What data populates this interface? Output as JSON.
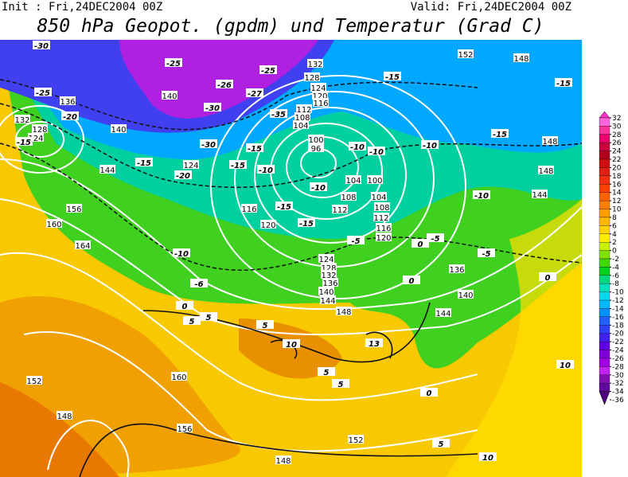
{
  "header": {
    "init": "Init : Fri,24DEC2004 00Z",
    "valid": "Valid: Fri,24DEC2004 00Z",
    "title": "850 hPa Geopot. (gpdm) und Temperatur (Grad C)"
  },
  "colorbar": {
    "ticks": [
      32,
      30,
      28,
      26,
      24,
      22,
      20,
      18,
      16,
      14,
      12,
      10,
      8,
      6,
      4,
      2,
      0,
      -2,
      -4,
      -6,
      -8,
      -10,
      -12,
      -14,
      -16,
      -18,
      -20,
      -22,
      -24,
      -26,
      -28,
      -30,
      -32,
      -34,
      -36
    ],
    "colors": [
      "#ff33cc",
      "#ff66dd",
      "#ff3399",
      "#e8006a",
      "#c80040",
      "#b00020",
      "#d01010",
      "#e02010",
      "#f03010",
      "#ff4000",
      "#ff6000",
      "#ff8000",
      "#ff9c00",
      "#ffb800",
      "#ffd400",
      "#ffee00",
      "#c8f000",
      "#80e000",
      "#40d800",
      "#00d020",
      "#00d880",
      "#00e0c0",
      "#00d8f0",
      "#00b8ff",
      "#0090ff",
      "#2060ff",
      "#3040ff",
      "#4020f0",
      "#6000e0",
      "#8000d8",
      "#a000e0",
      "#c020f0",
      "#8010b0",
      "#6008a0",
      "#500080"
    ]
  },
  "height_labels": [
    136,
    132,
    128,
    124,
    140,
    140,
    144,
    156,
    160,
    164,
    132,
    128,
    124,
    120,
    116,
    112,
    108,
    104,
    100,
    96,
    124,
    116,
    120,
    112,
    108,
    104,
    100,
    104,
    108,
    112,
    116,
    120,
    124,
    128,
    132,
    136,
    140,
    144,
    148,
    136,
    140,
    144,
    148,
    144,
    148,
    152,
    148,
    160,
    152,
    148,
    156,
    152,
    148
  ],
  "temperature_labels": [
    -30,
    -25,
    -25,
    -26,
    -27,
    -30,
    -35,
    -25,
    -20,
    -15,
    -15,
    -30,
    -15,
    -20,
    -15,
    -10,
    -15,
    -15,
    -15,
    -10,
    -10,
    -10,
    -10,
    -10,
    -15,
    -15,
    -10,
    -5,
    -5,
    0,
    -5,
    0,
    -6,
    0,
    5,
    5,
    0,
    10,
    13,
    5,
    5,
    5,
    0,
    5,
    10,
    10
  ]
}
